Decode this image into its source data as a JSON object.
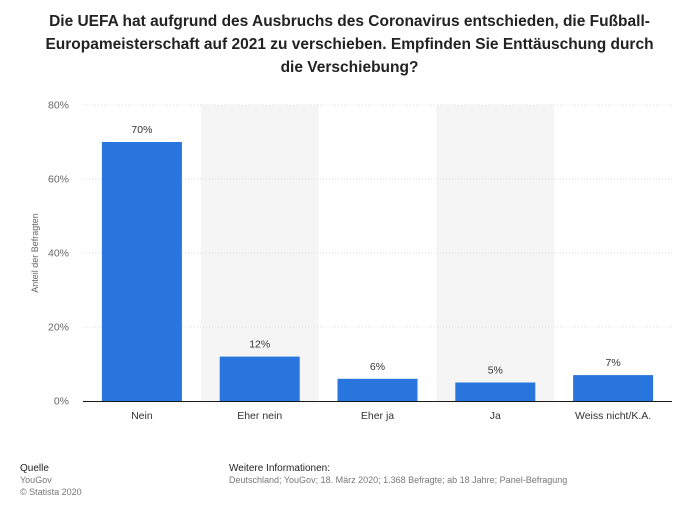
{
  "title_lines": [
    "Die UEFA hat aufgrund des Ausbruchs des Coronavirus entschieden, die Fußball-",
    "Europameisterschaft auf 2021 zu verschieben. Empfinden Sie Enttäuschung durch",
    "die Verschiebung?"
  ],
  "chart_data": {
    "type": "bar",
    "title": "Die UEFA hat aufgrund des Ausbruchs des Coronavirus entschieden, die Fußball-Europameisterschaft auf 2021 zu verschieben. Empfinden Sie Enttäuschung durch die Verschiebung?",
    "categories": [
      "Nein",
      "Eher nein",
      "Eher ja",
      "Ja",
      "Weiss nicht/K.A."
    ],
    "values": [
      70,
      12,
      6,
      5,
      7
    ],
    "value_labels": [
      "70%",
      "12%",
      "6%",
      "5%",
      "7%"
    ],
    "xlabel": "",
    "ylabel": "Anteil der Befragten",
    "ylim": [
      0,
      80
    ],
    "yticks": [
      0,
      20,
      40,
      60,
      80
    ],
    "ytick_labels": [
      "0%",
      "20%",
      "40%",
      "60%",
      "80%"
    ],
    "grid": true,
    "bar_color": "#2876dd",
    "band_color": "#f5f5f5"
  },
  "footer": {
    "source_heading": "Quelle",
    "source_name": "YouGov",
    "copyright": "© Statista 2020",
    "info_heading": "Weitere Informationen:",
    "info_text": "Deutschland; YouGov; 18. März 2020; 1.368 Befragte; ab 18 Jahre; Panel-Befragung"
  }
}
